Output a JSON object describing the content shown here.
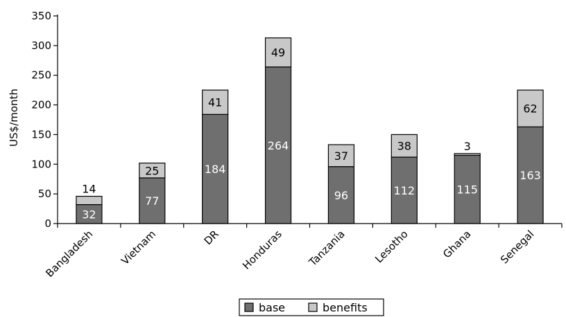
{
  "chart_data": {
    "type": "bar",
    "stacked": true,
    "categories": [
      "Bangladesh",
      "Vietnam",
      "DR",
      "Honduras",
      "Tanzania",
      "Lesotho",
      "Ghana",
      "Senegal"
    ],
    "series": [
      {
        "name": "base",
        "values": [
          32,
          77,
          184,
          264,
          96,
          112,
          115,
          163
        ],
        "color": "#6f6f6f"
      },
      {
        "name": "benefits",
        "values": [
          14,
          25,
          41,
          49,
          37,
          38,
          3,
          62
        ],
        "color": "#c8c8c8"
      }
    ],
    "ylabel": "US$/month",
    "xlabel": "",
    "ylim": [
      0,
      350
    ],
    "yticks": [
      0,
      50,
      100,
      150,
      200,
      250,
      300,
      350
    ],
    "grid": false,
    "legend": "bottom"
  }
}
